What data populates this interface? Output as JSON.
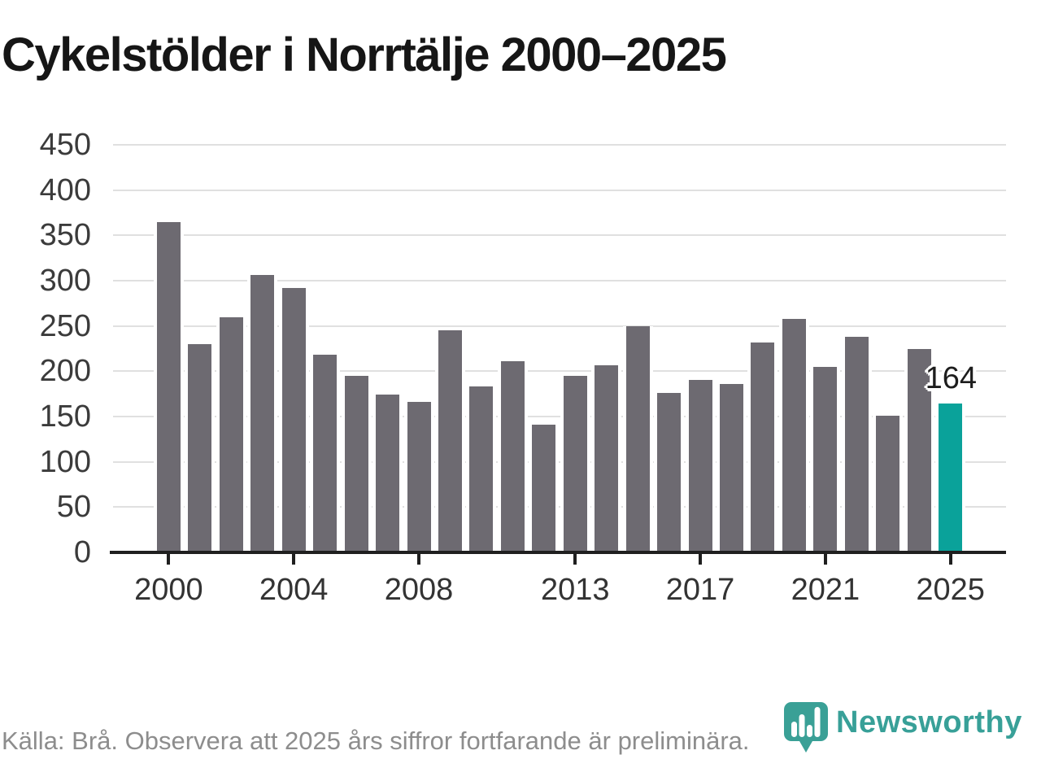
{
  "page_title": "Cykelstölder i Norrtälje 2000–2025",
  "chart_data": {
    "type": "bar",
    "title": "Cykelstölder i Norrtälje 2000–2025",
    "x": [
      2000,
      2001,
      2002,
      2003,
      2004,
      2005,
      2006,
      2007,
      2008,
      2009,
      2010,
      2011,
      2012,
      2013,
      2014,
      2015,
      2016,
      2017,
      2018,
      2019,
      2020,
      2021,
      2022,
      2023,
      2024,
      2025
    ],
    "values": [
      365,
      230,
      260,
      306,
      292,
      218,
      195,
      174,
      166,
      245,
      183,
      211,
      141,
      195,
      207,
      250,
      176,
      190,
      186,
      232,
      258,
      205,
      238,
      151,
      225,
      164
    ],
    "ylim": [
      0,
      450
    ],
    "yticks": [
      0,
      50,
      100,
      150,
      200,
      250,
      300,
      350,
      400,
      450
    ],
    "xticks": [
      2000,
      2004,
      2008,
      2013,
      2017,
      2021,
      2025
    ],
    "grid": true,
    "legend": "none",
    "bar_color": "#6d6a71",
    "highlight_color": "#0aa29a",
    "highlight_year": 2025,
    "annotation": {
      "label": "164",
      "year": 2025
    }
  },
  "footer": {
    "source_text": "Källa: Brå. Observera att 2025 års siffror fortfarande är preliminära.",
    "brand_name": "Newsworthy",
    "brand_color": "#38a098",
    "logo_icon": "newsworthy-pin-bar-chart-icon"
  }
}
